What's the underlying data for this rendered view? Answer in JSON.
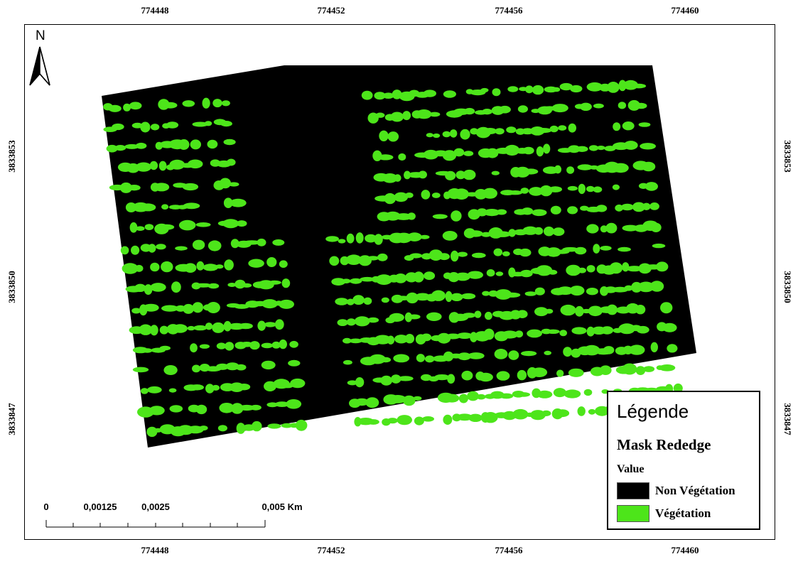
{
  "map": {
    "x_ticks": [
      "774448",
      "774452",
      "774456",
      "774460"
    ],
    "y_ticks": [
      "3833853",
      "3833850",
      "3833847"
    ]
  },
  "north_arrow": {
    "letter": "N",
    "icon": "north-arrow-icon"
  },
  "legend": {
    "title": "Légende",
    "layer_name": "Mask Rededge",
    "field": "Value",
    "items": [
      {
        "label": "Non Végétation",
        "color": "#000000"
      },
      {
        "label": "Végétation",
        "color": "#4de51a"
      }
    ]
  },
  "scale_bar": {
    "labels": [
      "0",
      "0,00125",
      "0,0025",
      "0,005 Km"
    ]
  },
  "colors": {
    "vegetation": "#4de51a",
    "non_vegetation": "#000000",
    "frame": "#000000"
  }
}
